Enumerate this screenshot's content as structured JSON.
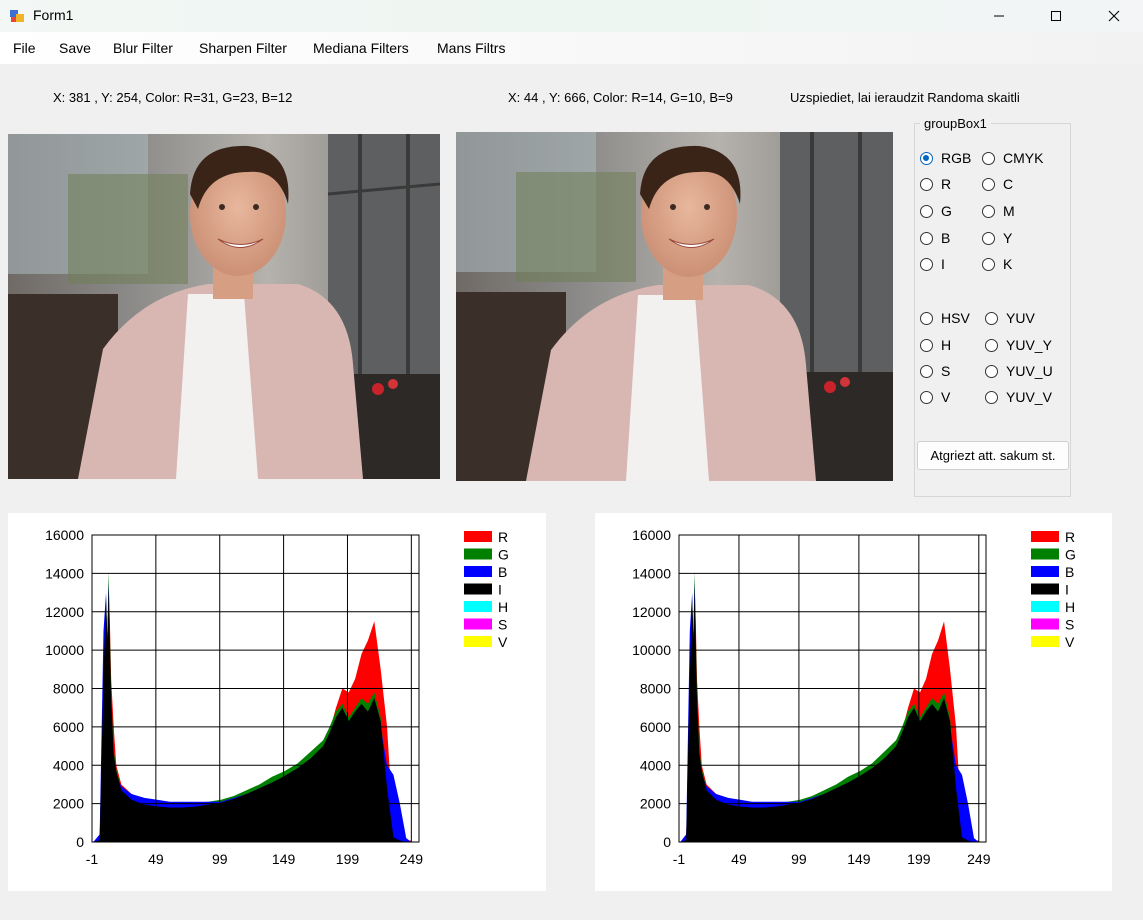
{
  "window": {
    "title": "Form1",
    "minimize_glyph": "—",
    "maximize_glyph": "☐",
    "close_glyph": "✕"
  },
  "menu": [
    "File",
    "Save",
    "Blur Filter",
    "Sharpen Filter",
    "Mediana Filters",
    "Mans Filtrs"
  ],
  "status": {
    "left_coords": "X: 381 , Y:  254, Color: R=31, G=23, B=12",
    "right_coords": "X: 44 , Y:  666, Color: R=14, G=10, B=9",
    "hint": "Uzspiediet, lai ieraudzit Randoma skaitli"
  },
  "groupbox": {
    "title": "groupBox1",
    "rgb_col": [
      "RGB",
      "R",
      "G",
      "B",
      "I"
    ],
    "cmyk_col": [
      "CMYK",
      "C",
      "M",
      "Y",
      "K"
    ],
    "hsv_col": [
      "HSV",
      "H",
      "S",
      "V"
    ],
    "yuv_col": [
      "YUV",
      "YUV_Y",
      "YUV_U",
      "YUV_V"
    ],
    "selected": "RGB",
    "reset_label": "Atgriezt att. sakum st."
  },
  "chart_data": [
    {
      "type": "area",
      "title": "",
      "xlabel": "",
      "ylabel": "",
      "xlim": [
        -1,
        255
      ],
      "ylim": [
        0,
        16000
      ],
      "x_ticks": [
        "-1",
        "49",
        "99",
        "149",
        "199",
        "249"
      ],
      "y_ticks": [
        "0",
        "2000",
        "4000",
        "6000",
        "8000",
        "10000",
        "12000",
        "14000",
        "16000"
      ],
      "grid": true,
      "legend_position": "top-right",
      "legend": [
        {
          "name": "R",
          "color": "#ff0000"
        },
        {
          "name": "G",
          "color": "#008000"
        },
        {
          "name": "B",
          "color": "#0000ff"
        },
        {
          "name": "I",
          "color": "#000000"
        },
        {
          "name": "H",
          "color": "#00ffff"
        },
        {
          "name": "S",
          "color": "#ff00ff"
        },
        {
          "name": "V",
          "color": "#ffff00"
        }
      ],
      "x": [
        0,
        5,
        8,
        10,
        11,
        12,
        13,
        14,
        16,
        18,
        22,
        30,
        40,
        50,
        60,
        70,
        80,
        90,
        100,
        110,
        120,
        130,
        140,
        150,
        160,
        170,
        180,
        185,
        190,
        195,
        200,
        205,
        210,
        215,
        220,
        225,
        230,
        235,
        240,
        245,
        249
      ],
      "series": [
        {
          "name": "R",
          "values": [
            0,
            150,
            8500,
            12500,
            10500,
            13500,
            11500,
            8500,
            6000,
            4000,
            3000,
            2500,
            2200,
            2100,
            2000,
            2000,
            2000,
            2050,
            2100,
            2300,
            2500,
            2800,
            3100,
            3400,
            3800,
            4200,
            5000,
            5800,
            7000,
            8000,
            7800,
            8500,
            9800,
            10500,
            11500,
            9000,
            6000,
            500,
            100,
            0,
            100
          ]
        },
        {
          "name": "G",
          "values": [
            0,
            100,
            8800,
            12800,
            10800,
            14100,
            11000,
            7800,
            4800,
            3800,
            2800,
            2400,
            2200,
            2100,
            2000,
            2000,
            2050,
            2100,
            2200,
            2400,
            2700,
            3000,
            3400,
            3700,
            4100,
            4700,
            5300,
            6000,
            6800,
            7200,
            6500,
            7000,
            7500,
            7200,
            7800,
            6500,
            3000,
            300,
            100,
            0,
            0
          ]
        },
        {
          "name": "B",
          "values": [
            0,
            400,
            11000,
            13000,
            10000,
            13600,
            9000,
            6000,
            4200,
            3500,
            2900,
            2500,
            2300,
            2200,
            2100,
            2100,
            2100,
            2100,
            2100,
            2300,
            2500,
            2800,
            3100,
            3400,
            3700,
            4100,
            4700,
            5300,
            6000,
            6600,
            6000,
            6600,
            6800,
            6500,
            6800,
            6000,
            4000,
            3500,
            2000,
            200,
            0
          ]
        },
        {
          "name": "I",
          "values": [
            0,
            100,
            8700,
            12600,
            10500,
            13400,
            10500,
            7500,
            4600,
            3700,
            2700,
            2200,
            1950,
            1850,
            1800,
            1800,
            1850,
            1950,
            2050,
            2250,
            2500,
            2800,
            3100,
            3450,
            3850,
            4350,
            5000,
            5700,
            6500,
            7000,
            6300,
            6800,
            7200,
            6800,
            7500,
            6300,
            2800,
            250,
            80,
            0,
            0
          ]
        }
      ]
    },
    {
      "type": "area",
      "title": "",
      "xlabel": "",
      "ylabel": "",
      "xlim": [
        -1,
        255
      ],
      "ylim": [
        0,
        16000
      ],
      "x_ticks": [
        "-1",
        "49",
        "99",
        "149",
        "199",
        "249"
      ],
      "y_ticks": [
        "0",
        "2000",
        "4000",
        "6000",
        "8000",
        "10000",
        "12000",
        "14000",
        "16000"
      ],
      "grid": true,
      "legend_position": "top-right",
      "legend": [
        {
          "name": "R",
          "color": "#ff0000"
        },
        {
          "name": "G",
          "color": "#008000"
        },
        {
          "name": "B",
          "color": "#0000ff"
        },
        {
          "name": "I",
          "color": "#000000"
        },
        {
          "name": "H",
          "color": "#00ffff"
        },
        {
          "name": "S",
          "color": "#ff00ff"
        },
        {
          "name": "V",
          "color": "#ffff00"
        }
      ],
      "x": [
        0,
        5,
        8,
        10,
        11,
        12,
        13,
        14,
        16,
        18,
        22,
        30,
        40,
        50,
        60,
        70,
        80,
        90,
        100,
        110,
        120,
        130,
        140,
        150,
        160,
        170,
        180,
        185,
        190,
        195,
        200,
        205,
        210,
        215,
        220,
        225,
        230,
        235,
        240,
        245,
        249
      ],
      "series": [
        {
          "name": "R",
          "values": [
            0,
            150,
            8500,
            12500,
            10500,
            13500,
            11500,
            8500,
            6000,
            4000,
            3000,
            2500,
            2200,
            2100,
            2000,
            2000,
            2000,
            2050,
            2100,
            2300,
            2500,
            2800,
            3100,
            3400,
            3800,
            4200,
            5000,
            5800,
            7000,
            8000,
            7800,
            8500,
            9800,
            10500,
            11500,
            9000,
            6000,
            500,
            100,
            0,
            100
          ]
        },
        {
          "name": "G",
          "values": [
            0,
            100,
            8800,
            12800,
            10800,
            14100,
            11000,
            7800,
            4800,
            3800,
            2800,
            2400,
            2200,
            2100,
            2000,
            2000,
            2050,
            2100,
            2200,
            2400,
            2700,
            3000,
            3400,
            3700,
            4100,
            4700,
            5300,
            6000,
            6800,
            7200,
            6500,
            7000,
            7500,
            7200,
            7800,
            6500,
            3000,
            300,
            100,
            0,
            0
          ]
        },
        {
          "name": "B",
          "values": [
            0,
            400,
            11000,
            13000,
            10000,
            13600,
            9000,
            6000,
            4200,
            3500,
            2900,
            2500,
            2300,
            2200,
            2100,
            2100,
            2100,
            2100,
            2100,
            2300,
            2500,
            2800,
            3100,
            3400,
            3700,
            4100,
            4700,
            5300,
            6000,
            6600,
            6000,
            6600,
            6800,
            6500,
            6800,
            6000,
            4000,
            3500,
            2000,
            200,
            0
          ]
        },
        {
          "name": "I",
          "values": [
            0,
            100,
            8700,
            12600,
            10500,
            13400,
            10500,
            7500,
            4600,
            3700,
            2700,
            2200,
            1950,
            1850,
            1800,
            1800,
            1850,
            1950,
            2050,
            2250,
            2500,
            2800,
            3100,
            3450,
            3850,
            4350,
            5000,
            5700,
            6500,
            7000,
            6300,
            6800,
            7200,
            6800,
            7500,
            6300,
            2800,
            250,
            80,
            0,
            0
          ]
        }
      ]
    }
  ]
}
